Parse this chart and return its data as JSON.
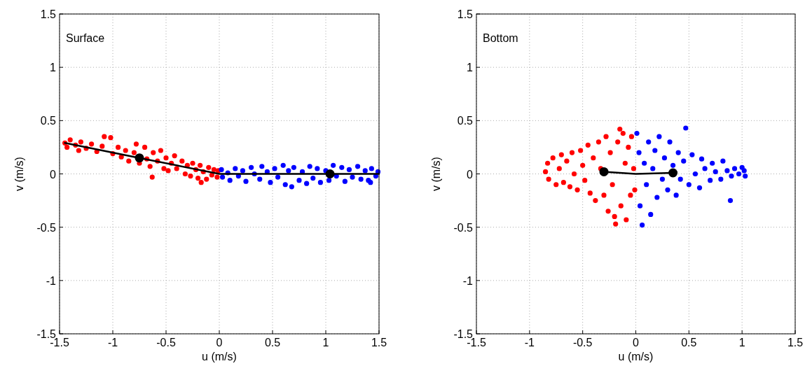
{
  "chart_data": [
    {
      "type": "scatter",
      "xlabel": "u (m/s)",
      "ylabel": "v (m/s)",
      "annotations": [
        "Surface"
      ],
      "xlim": [
        -1.5,
        1.5
      ],
      "ylim": [
        -1.5,
        1.5
      ],
      "xticks": [
        -1.5,
        -1,
        -0.5,
        0,
        0.5,
        1,
        1.5
      ],
      "yticks": [
        -1.5,
        -1,
        -0.5,
        0,
        0.5,
        1,
        1.5
      ],
      "grid": true,
      "marker": "circle",
      "series": [
        {
          "color": "#ff0000",
          "x": [
            -1.45,
            -1.43,
            -1.4,
            -1.35,
            -1.32,
            -1.3,
            -1.25,
            -1.2,
            -1.15,
            -1.1,
            -1.08,
            -1.02,
            -1.0,
            -0.95,
            -0.92,
            -0.88,
            -0.85,
            -0.8,
            -0.78,
            -0.75,
            -0.7,
            -0.68,
            -0.65,
            -0.63,
            -0.62,
            -0.58,
            -0.55,
            -0.52,
            -0.5,
            -0.48,
            -0.45,
            -0.42,
            -0.4,
            -0.35,
            -0.32,
            -0.3,
            -0.27,
            -0.25,
            -0.22,
            -0.2,
            -0.18,
            -0.17,
            -0.15,
            -0.12,
            -0.1,
            -0.07,
            -0.05,
            -0.02,
            -0.01
          ],
          "values": [
            0.29,
            0.25,
            0.32,
            0.27,
            0.22,
            0.3,
            0.24,
            0.28,
            0.21,
            0.26,
            0.35,
            0.34,
            0.19,
            0.25,
            0.16,
            0.22,
            0.12,
            0.2,
            0.28,
            0.1,
            0.25,
            0.14,
            0.07,
            -0.03,
            0.2,
            0.12,
            0.22,
            0.05,
            0.15,
            0.03,
            0.1,
            0.17,
            0.05,
            0.12,
            0.0,
            0.08,
            -0.02,
            0.1,
            0.04,
            -0.04,
            0.08,
            -0.08,
            0.02,
            -0.05,
            0.06,
            -0.01,
            0.04,
            -0.03,
            0.03
          ]
        },
        {
          "color": "#0000ff",
          "x": [
            0.02,
            0.03,
            0.08,
            0.1,
            0.15,
            0.18,
            0.22,
            0.25,
            0.3,
            0.33,
            0.38,
            0.4,
            0.45,
            0.48,
            0.52,
            0.55,
            0.6,
            0.62,
            0.65,
            0.68,
            0.7,
            0.75,
            0.78,
            0.82,
            0.85,
            0.88,
            0.92,
            0.95,
            1.0,
            1.03,
            1.07,
            1.1,
            1.15,
            1.18,
            1.22,
            1.25,
            1.3,
            1.33,
            1.37,
            1.4,
            1.42,
            1.43,
            1.47,
            1.49
          ],
          "values": [
            0.04,
            -0.03,
            0.01,
            -0.06,
            0.05,
            -0.02,
            0.03,
            -0.07,
            0.06,
            0.0,
            -0.05,
            0.07,
            0.02,
            -0.08,
            0.05,
            -0.03,
            0.08,
            -0.1,
            0.03,
            -0.12,
            0.06,
            -0.06,
            0.02,
            -0.09,
            0.07,
            -0.04,
            0.05,
            -0.08,
            0.03,
            -0.06,
            0.08,
            -0.02,
            0.06,
            -0.07,
            0.04,
            -0.03,
            0.07,
            -0.05,
            0.03,
            -0.06,
            -0.08,
            0.05,
            -0.02,
            0.02
          ]
        },
        {
          "type": "line",
          "color": "#000000",
          "marker": "none",
          "line_style": "solid",
          "x": [
            -1.45,
            -0.75,
            0,
            1.5
          ],
          "values": [
            0.29,
            0.15,
            0,
            0
          ]
        },
        {
          "color": "#000000",
          "x": [
            -0.75,
            1.04
          ],
          "values": [
            0.15,
            0
          ]
        }
      ]
    },
    {
      "type": "scatter",
      "xlabel": "u (m/s)",
      "ylabel": "v (m/s)",
      "annotations": [
        "Bottom"
      ],
      "xlim": [
        -1.5,
        1.5
      ],
      "ylim": [
        -1.5,
        1.5
      ],
      "xticks": [
        -1.5,
        -1,
        -0.5,
        0,
        0.5,
        1,
        1.5
      ],
      "yticks": [
        -1.5,
        -1,
        -0.5,
        0,
        0.5,
        1,
        1.5
      ],
      "grid": true,
      "marker": "circle",
      "series": [
        {
          "color": "#ff0000",
          "x": [
            -0.85,
            -0.83,
            -0.82,
            -0.78,
            -0.75,
            -0.72,
            -0.7,
            -0.68,
            -0.65,
            -0.62,
            -0.6,
            -0.58,
            -0.55,
            -0.52,
            -0.5,
            -0.48,
            -0.45,
            -0.43,
            -0.4,
            -0.38,
            -0.35,
            -0.33,
            -0.3,
            -0.28,
            -0.26,
            -0.24,
            -0.22,
            -0.2,
            -0.19,
            -0.17,
            -0.15,
            -0.14,
            -0.12,
            -0.1,
            -0.09,
            -0.07,
            -0.05,
            -0.04,
            -0.02,
            -0.01
          ],
          "values": [
            0.02,
            0.1,
            -0.05,
            0.15,
            -0.1,
            0.05,
            0.18,
            -0.08,
            0.12,
            -0.12,
            0.2,
            0.0,
            -0.15,
            0.22,
            0.08,
            -0.06,
            0.27,
            -0.18,
            0.15,
            -0.25,
            0.3,
            0.05,
            -0.2,
            0.35,
            -0.35,
            0.2,
            -0.1,
            -0.4,
            -0.47,
            0.3,
            0.42,
            -0.3,
            0.38,
            0.1,
            -0.43,
            0.25,
            -0.2,
            0.35,
            0.05,
            -0.15
          ]
        },
        {
          "color": "#0000ff",
          "x": [
            0.01,
            0.03,
            0.04,
            0.06,
            0.08,
            0.1,
            0.12,
            0.14,
            0.16,
            0.18,
            0.2,
            0.22,
            0.25,
            0.27,
            0.3,
            0.32,
            0.35,
            0.38,
            0.4,
            0.42,
            0.45,
            0.47,
            0.5,
            0.53,
            0.56,
            0.6,
            0.62,
            0.65,
            0.7,
            0.72,
            0.75,
            0.8,
            0.82,
            0.86,
            0.89,
            0.9,
            0.93,
            0.97,
            1.0,
            1.02,
            1.03
          ],
          "values": [
            0.38,
            0.2,
            -0.3,
            -0.48,
            0.1,
            -0.1,
            0.3,
            -0.38,
            0.05,
            0.22,
            -0.22,
            0.35,
            -0.05,
            0.15,
            -0.15,
            0.3,
            0.08,
            -0.2,
            0.2,
            -0.05,
            0.12,
            0.43,
            -0.1,
            0.18,
            0.0,
            -0.13,
            0.14,
            0.05,
            -0.06,
            0.1,
            0.02,
            -0.05,
            0.12,
            0.03,
            -0.25,
            -0.02,
            0.05,
            0.0,
            0.06,
            0.03,
            -0.02
          ]
        },
        {
          "type": "line",
          "color": "#000000",
          "marker": "none",
          "line_style": "solid",
          "x": [
            -0.3,
            0,
            0.35
          ],
          "values": [
            0.02,
            0,
            0.01
          ]
        },
        {
          "color": "#000000",
          "x": [
            -0.3,
            0.35
          ],
          "values": [
            0.02,
            0.01
          ]
        }
      ]
    }
  ]
}
